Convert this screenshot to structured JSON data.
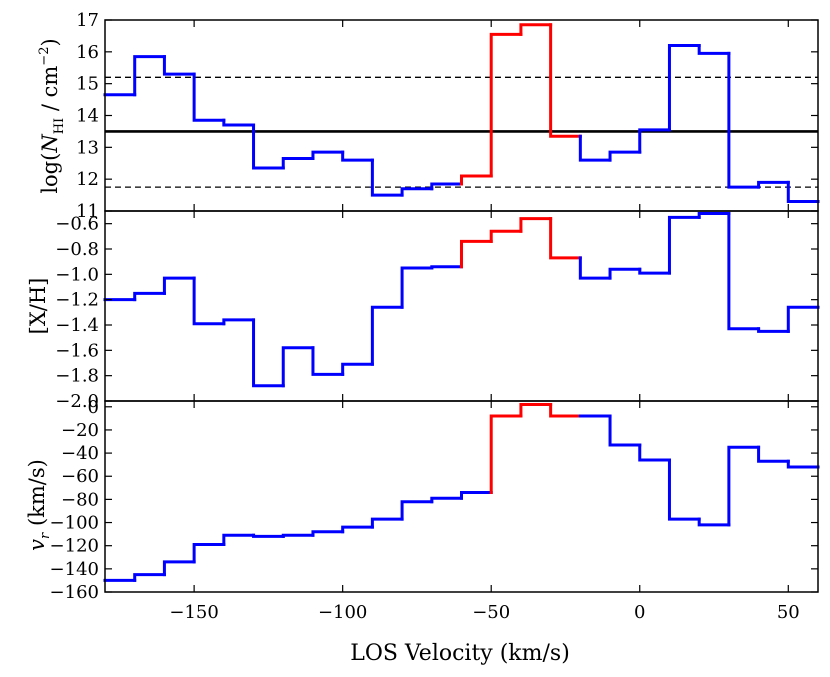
{
  "chart_data": [
    {
      "type": "line",
      "step": true,
      "name": "column-density",
      "ylabel_prefix": "log(",
      "ylabel_sym": "N",
      "ylabel_sub": "HI",
      "ylabel_mid": " / cm",
      "ylabel_sup": "−2",
      "ylabel_suffix": ")",
      "ylim": [
        11,
        17
      ],
      "yticks": [
        11,
        12,
        13,
        14,
        15,
        16,
        17
      ],
      "ytick_labels": [
        "11",
        "12",
        "13",
        "14",
        "15",
        "16",
        "17"
      ],
      "hlines": [
        {
          "y": 13.5,
          "style": "solid"
        },
        {
          "y": 15.2,
          "style": "dashed"
        },
        {
          "y": 11.75,
          "style": "dashed"
        }
      ],
      "bins": [
        {
          "x0": -180,
          "x1": -170,
          "y": 14.65,
          "c": "blue"
        },
        {
          "x0": -170,
          "x1": -160,
          "y": 15.85,
          "c": "blue"
        },
        {
          "x0": -160,
          "x1": -150,
          "y": 15.3,
          "c": "blue"
        },
        {
          "x0": -150,
          "x1": -140,
          "y": 13.85,
          "c": "blue"
        },
        {
          "x0": -140,
          "x1": -130,
          "y": 13.7,
          "c": "blue"
        },
        {
          "x0": -130,
          "x1": -120,
          "y": 12.35,
          "c": "blue"
        },
        {
          "x0": -120,
          "x1": -110,
          "y": 12.65,
          "c": "blue"
        },
        {
          "x0": -110,
          "x1": -100,
          "y": 12.85,
          "c": "blue"
        },
        {
          "x0": -100,
          "x1": -90,
          "y": 12.6,
          "c": "blue"
        },
        {
          "x0": -90,
          "x1": -80,
          "y": 11.5,
          "c": "blue"
        },
        {
          "x0": -80,
          "x1": -70,
          "y": 11.7,
          "c": "blue"
        },
        {
          "x0": -70,
          "x1": -60,
          "y": 11.85,
          "c": "blue"
        },
        {
          "x0": -60,
          "x1": -50,
          "y": 12.1,
          "c": "red"
        },
        {
          "x0": -50,
          "x1": -40,
          "y": 16.55,
          "c": "red"
        },
        {
          "x0": -40,
          "x1": -30,
          "y": 16.85,
          "c": "red"
        },
        {
          "x0": -30,
          "x1": -20,
          "y": 13.35,
          "c": "red"
        },
        {
          "x0": -20,
          "x1": -10,
          "y": 12.6,
          "c": "blue"
        },
        {
          "x0": -10,
          "x1": 0,
          "y": 12.85,
          "c": "blue"
        },
        {
          "x0": 0,
          "x1": 10,
          "y": 13.55,
          "c": "blue"
        },
        {
          "x0": 10,
          "x1": 20,
          "y": 16.2,
          "c": "blue"
        },
        {
          "x0": 20,
          "x1": 30,
          "y": 15.95,
          "c": "blue"
        },
        {
          "x0": 30,
          "x1": 40,
          "y": 11.75,
          "c": "blue"
        },
        {
          "x0": 40,
          "x1": 50,
          "y": 11.9,
          "c": "blue"
        },
        {
          "x0": 50,
          "x1": 60,
          "y": 11.3,
          "c": "blue"
        }
      ]
    },
    {
      "type": "line",
      "step": true,
      "name": "metallicity",
      "ylabel": "[X/H]",
      "ylim": [
        -2.0,
        -0.5
      ],
      "yticks": [
        -2.0,
        -1.8,
        -1.6,
        -1.4,
        -1.2,
        -1.0,
        -0.8,
        -0.6
      ],
      "ytick_labels": [
        "−2.0",
        "−1.8",
        "−1.6",
        "−1.4",
        "−1.2",
        "−1.0",
        "−0.8",
        "−0.6"
      ],
      "bins": [
        {
          "x0": -180,
          "x1": -170,
          "y": -1.2,
          "c": "blue"
        },
        {
          "x0": -170,
          "x1": -160,
          "y": -1.15,
          "c": "blue"
        },
        {
          "x0": -160,
          "x1": -150,
          "y": -1.03,
          "c": "blue"
        },
        {
          "x0": -150,
          "x1": -140,
          "y": -1.39,
          "c": "blue"
        },
        {
          "x0": -140,
          "x1": -130,
          "y": -1.36,
          "c": "blue"
        },
        {
          "x0": -130,
          "x1": -120,
          "y": -1.88,
          "c": "blue"
        },
        {
          "x0": -120,
          "x1": -110,
          "y": -1.58,
          "c": "blue"
        },
        {
          "x0": -110,
          "x1": -100,
          "y": -1.79,
          "c": "blue"
        },
        {
          "x0": -100,
          "x1": -90,
          "y": -1.71,
          "c": "blue"
        },
        {
          "x0": -90,
          "x1": -80,
          "y": -1.26,
          "c": "blue"
        },
        {
          "x0": -80,
          "x1": -70,
          "y": -0.95,
          "c": "blue"
        },
        {
          "x0": -70,
          "x1": -60,
          "y": -0.94,
          "c": "blue"
        },
        {
          "x0": -60,
          "x1": -50,
          "y": -0.74,
          "c": "red"
        },
        {
          "x0": -50,
          "x1": -40,
          "y": -0.66,
          "c": "red"
        },
        {
          "x0": -40,
          "x1": -30,
          "y": -0.56,
          "c": "red"
        },
        {
          "x0": -30,
          "x1": -20,
          "y": -0.87,
          "c": "red"
        },
        {
          "x0": -20,
          "x1": -10,
          "y": -1.03,
          "c": "blue"
        },
        {
          "x0": -10,
          "x1": 0,
          "y": -0.96,
          "c": "blue"
        },
        {
          "x0": 0,
          "x1": 10,
          "y": -0.99,
          "c": "blue"
        },
        {
          "x0": 10,
          "x1": 20,
          "y": -0.55,
          "c": "blue"
        },
        {
          "x0": 20,
          "x1": 30,
          "y": -0.52,
          "c": "blue"
        },
        {
          "x0": 30,
          "x1": 40,
          "y": -1.43,
          "c": "blue"
        },
        {
          "x0": 40,
          "x1": 50,
          "y": -1.45,
          "c": "blue"
        },
        {
          "x0": 50,
          "x1": 60,
          "y": -1.26,
          "c": "blue"
        }
      ]
    },
    {
      "type": "line",
      "step": true,
      "name": "radial-velocity",
      "ylabel_sym": "v",
      "ylabel_sub": "r",
      "ylabel_suffix": " (km/s)",
      "ylim": [
        -160,
        5
      ],
      "yticks": [
        -160,
        -140,
        -120,
        -100,
        -80,
        -60,
        -40,
        -20,
        0
      ],
      "ytick_labels": [
        "−160",
        "−140",
        "−120",
        "−100",
        "−80",
        "−60",
        "−40",
        "−20",
        "0"
      ],
      "bins": [
        {
          "x0": -180,
          "x1": -170,
          "y": -150,
          "c": "blue"
        },
        {
          "x0": -170,
          "x1": -160,
          "y": -145,
          "c": "blue"
        },
        {
          "x0": -160,
          "x1": -150,
          "y": -134,
          "c": "blue"
        },
        {
          "x0": -150,
          "x1": -140,
          "y": -119,
          "c": "blue"
        },
        {
          "x0": -140,
          "x1": -130,
          "y": -111,
          "c": "blue"
        },
        {
          "x0": -130,
          "x1": -120,
          "y": -112,
          "c": "blue"
        },
        {
          "x0": -120,
          "x1": -110,
          "y": -111,
          "c": "blue"
        },
        {
          "x0": -110,
          "x1": -100,
          "y": -108,
          "c": "blue"
        },
        {
          "x0": -100,
          "x1": -90,
          "y": -104,
          "c": "blue"
        },
        {
          "x0": -90,
          "x1": -80,
          "y": -97,
          "c": "blue"
        },
        {
          "x0": -80,
          "x1": -70,
          "y": -82,
          "c": "blue"
        },
        {
          "x0": -70,
          "x1": -60,
          "y": -79,
          "c": "blue"
        },
        {
          "x0": -60,
          "x1": -50,
          "y": -74,
          "c": "blue"
        },
        {
          "x0": -50,
          "x1": -40,
          "y": -8,
          "c": "red"
        },
        {
          "x0": -40,
          "x1": -30,
          "y": 2,
          "c": "red"
        },
        {
          "x0": -30,
          "x1": -20,
          "y": -8,
          "c": "red"
        },
        {
          "x0": -20,
          "x1": -10,
          "y": -8,
          "c": "blue"
        },
        {
          "x0": -10,
          "x1": 0,
          "y": -33,
          "c": "blue"
        },
        {
          "x0": 0,
          "x1": 10,
          "y": -46,
          "c": "blue"
        },
        {
          "x0": 10,
          "x1": 20,
          "y": -97,
          "c": "blue"
        },
        {
          "x0": 20,
          "x1": 30,
          "y": -102,
          "c": "blue"
        },
        {
          "x0": 30,
          "x1": 40,
          "y": -35,
          "c": "blue"
        },
        {
          "x0": 40,
          "x1": 50,
          "y": -47,
          "c": "blue"
        },
        {
          "x0": 50,
          "x1": 60,
          "y": -52,
          "c": "blue"
        }
      ]
    }
  ],
  "x_axis": {
    "label": "LOS Velocity (km/s)",
    "xlim": [
      -180,
      60
    ],
    "ticks": [
      -150,
      -100,
      -50,
      0,
      50
    ],
    "tick_labels": [
      "−150",
      "−100",
      "−50",
      "0",
      "50"
    ]
  },
  "colors": {
    "blue": "#0000ff",
    "red": "#ff0000",
    "axis": "#000000"
  }
}
